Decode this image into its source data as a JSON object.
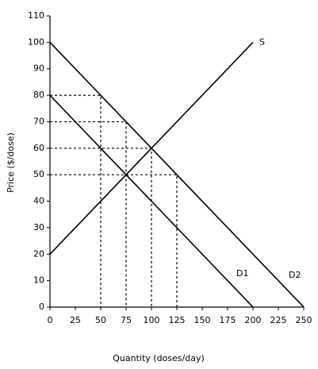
{
  "chart_data": {
    "type": "line",
    "xlabel": "Quantity (doses/day)",
    "ylabel": "Price ($/dose)",
    "xlim": [
      0,
      250
    ],
    "ylim": [
      0,
      110
    ],
    "xticks": [
      0,
      25,
      50,
      75,
      100,
      125,
      150,
      175,
      200,
      225,
      250
    ],
    "yticks": [
      0,
      10,
      20,
      30,
      40,
      50,
      60,
      70,
      80,
      90,
      100,
      110
    ],
    "grid": false,
    "series": [
      {
        "name": "S",
        "color": "#000000",
        "x": [
          0,
          200
        ],
        "values": [
          20,
          100
        ]
      },
      {
        "name": "D1",
        "color": "#000000",
        "x": [
          0,
          200
        ],
        "values": [
          80,
          0
        ]
      },
      {
        "name": "D2",
        "color": "#000000",
        "x": [
          0,
          250
        ],
        "values": [
          100,
          0
        ]
      }
    ],
    "guides": [
      {
        "x": 50,
        "y": 80
      },
      {
        "x": 75,
        "y": 70
      },
      {
        "x": 100,
        "y": 60
      },
      {
        "x": 125,
        "y": 50
      }
    ]
  }
}
